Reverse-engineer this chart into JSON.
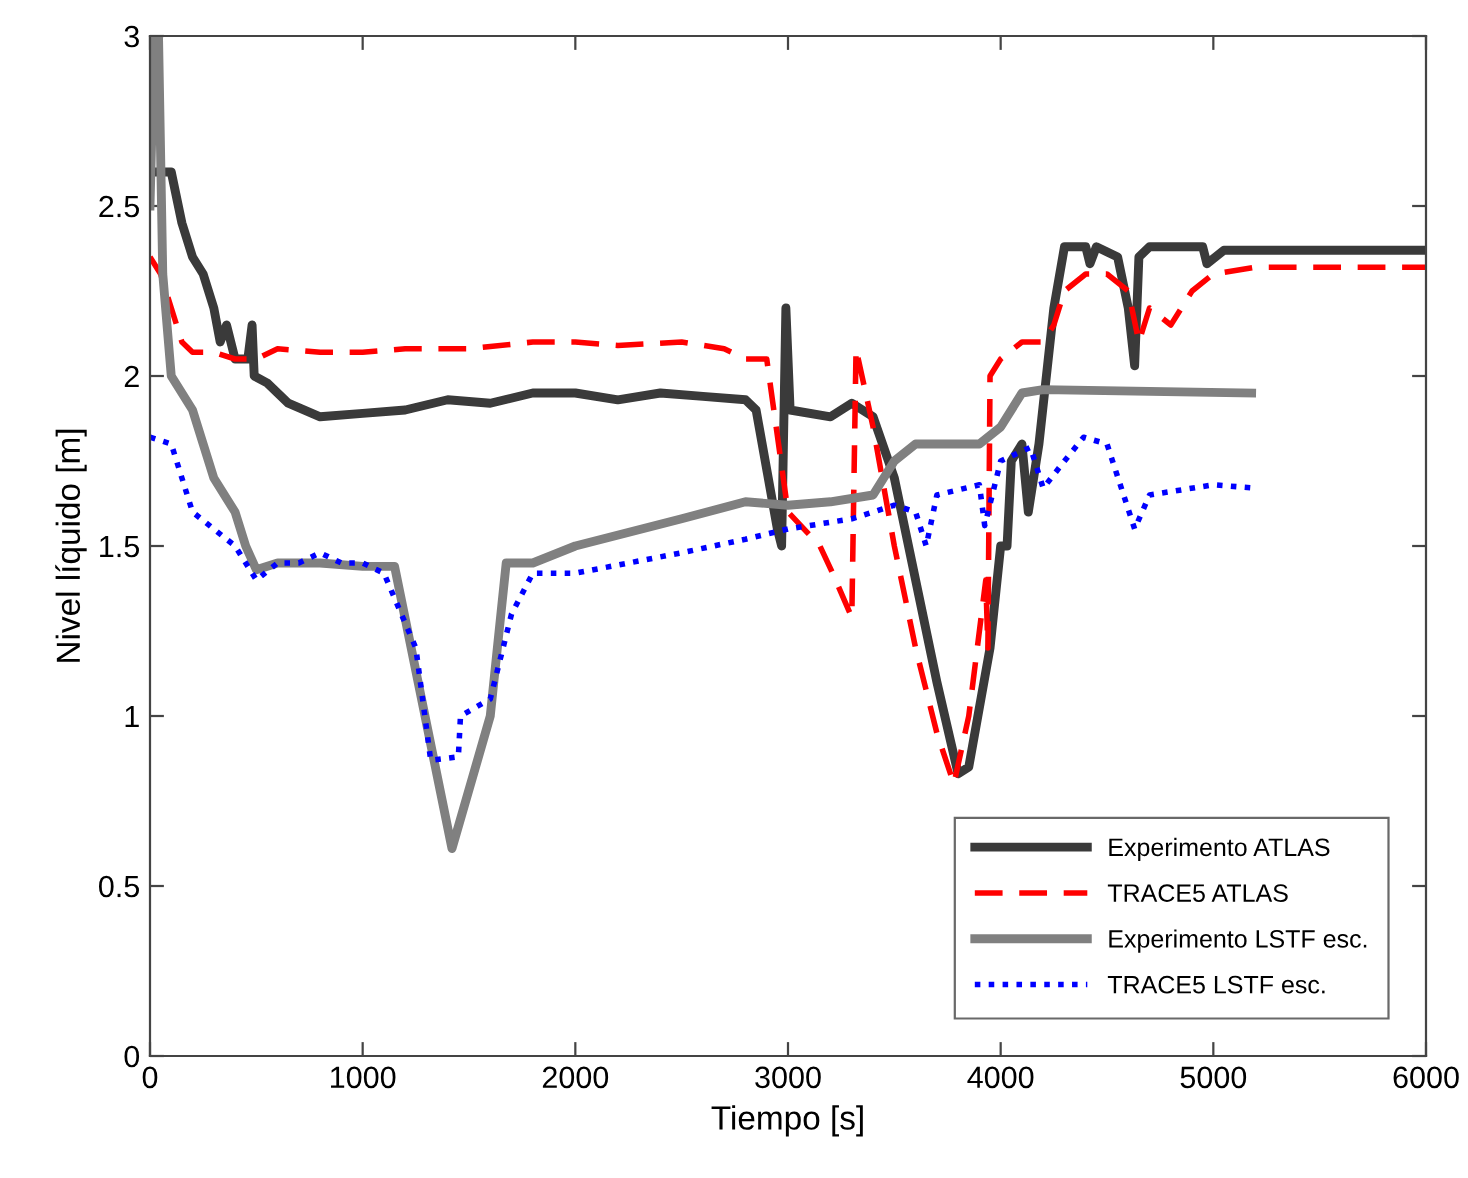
{
  "chart_data": {
    "type": "line",
    "xlabel": "Tiempo [s]",
    "ylabel": "Nivel líquido [m]",
    "xlim": [
      0,
      6000
    ],
    "ylim": [
      0,
      3
    ],
    "xticks": [
      0,
      1000,
      2000,
      3000,
      4000,
      5000,
      6000
    ],
    "yticks": [
      0,
      0.5,
      1,
      1.5,
      2,
      2.5,
      3
    ],
    "grid": false,
    "legend": "bottom right",
    "series": [
      {
        "name": "Experimento ATLAS",
        "color": "#3a3a3a",
        "line_style": "solid",
        "x": [
          40,
          100,
          150,
          200,
          250,
          300,
          330,
          360,
          400,
          460,
          480,
          490,
          550,
          650,
          800,
          1000,
          1200,
          1400,
          1600,
          1800,
          2000,
          2200,
          2400,
          2600,
          2800,
          2850,
          2950,
          2970,
          2990,
          3010,
          3200,
          3300,
          3400,
          3500,
          3700,
          3800,
          3850,
          3950,
          4000,
          4030,
          4050,
          4100,
          4130,
          4180,
          4250,
          4300,
          4400,
          4420,
          4450,
          4550,
          4600,
          4630,
          4650,
          4700,
          4950,
          4970,
          5050,
          6000
        ],
        "values": [
          2.6,
          2.6,
          2.45,
          2.35,
          2.3,
          2.2,
          2.1,
          2.15,
          2.05,
          2.05,
          2.15,
          2.0,
          1.98,
          1.92,
          1.88,
          1.89,
          1.9,
          1.93,
          1.92,
          1.95,
          1.95,
          1.93,
          1.95,
          1.94,
          1.93,
          1.9,
          1.55,
          1.5,
          2.2,
          1.9,
          1.88,
          1.92,
          1.88,
          1.7,
          1.1,
          0.83,
          0.85,
          1.2,
          1.5,
          1.5,
          1.75,
          1.8,
          1.6,
          1.8,
          2.2,
          2.38,
          2.38,
          2.33,
          2.38,
          2.35,
          2.2,
          2.03,
          2.35,
          2.38,
          2.38,
          2.33,
          2.37,
          2.37
        ]
      },
      {
        "name": "TRACE5 ATLAS",
        "color": "#ff0000",
        "line_style": "dashed",
        "x": [
          0,
          50,
          100,
          150,
          200,
          300,
          400,
          500,
          600,
          800,
          1000,
          1200,
          1500,
          1800,
          2000,
          2200,
          2500,
          2700,
          2800,
          2900,
          3000,
          3090,
          3150,
          3210,
          3300,
          3320,
          3400,
          3500,
          3600,
          3700,
          3780,
          3850,
          3930,
          3940,
          3950,
          4000,
          4100,
          4200,
          4250,
          4300,
          4400,
          4500,
          4600,
          4650,
          4700,
          4800,
          4900,
          5000,
          5200,
          6000
        ],
        "values": [
          2.35,
          2.3,
          2.2,
          2.1,
          2.07,
          2.07,
          2.05,
          2.05,
          2.08,
          2.07,
          2.07,
          2.08,
          2.08,
          2.1,
          2.1,
          2.09,
          2.1,
          2.08,
          2.05,
          2.05,
          1.6,
          1.54,
          1.5,
          1.42,
          1.29,
          2.08,
          1.85,
          1.5,
          1.2,
          0.95,
          0.8,
          1.0,
          1.4,
          1.2,
          2.0,
          2.05,
          2.1,
          2.1,
          2.15,
          2.25,
          2.3,
          2.3,
          2.25,
          2.1,
          2.2,
          2.15,
          2.25,
          2.3,
          2.32,
          2.32
        ]
      },
      {
        "name": "Experimento LSTF esc.",
        "color": "#808080",
        "line_style": "solid",
        "x": [
          0,
          20,
          40,
          60,
          100,
          200,
          300,
          400,
          450,
          500,
          600,
          800,
          1000,
          1150,
          1420,
          1600,
          1675,
          1800,
          2000,
          2500,
          2800,
          3000,
          3200,
          3400,
          3500,
          3600,
          3800,
          3900,
          4000,
          4100,
          4200,
          5180
        ],
        "values": [
          2.5,
          3.0,
          3.0,
          2.3,
          2.0,
          1.9,
          1.7,
          1.6,
          1.5,
          1.43,
          1.45,
          1.45,
          1.44,
          1.44,
          0.61,
          1.0,
          1.45,
          1.45,
          1.5,
          1.58,
          1.63,
          1.62,
          1.63,
          1.65,
          1.75,
          1.8,
          1.8,
          1.8,
          1.85,
          1.95,
          1.96,
          1.95
        ]
      },
      {
        "name": "TRACE5 LSTF esc.",
        "color": "#0000ff",
        "line_style": "dotted",
        "x": [
          0,
          100,
          150,
          200,
          300,
          400,
          500,
          600,
          700,
          800,
          900,
          1000,
          1100,
          1250,
          1320,
          1450,
          1460,
          1600,
          1700,
          1800,
          2000,
          2500,
          2800,
          3000,
          3300,
          3500,
          3600,
          3650,
          3700,
          3900,
          3925,
          4000,
          4140,
          4200,
          4300,
          4390,
          4500,
          4630,
          4700,
          5000,
          5200
        ],
        "values": [
          1.82,
          1.8,
          1.7,
          1.6,
          1.55,
          1.5,
          1.4,
          1.45,
          1.45,
          1.48,
          1.45,
          1.45,
          1.42,
          1.2,
          0.87,
          0.88,
          1.0,
          1.05,
          1.3,
          1.42,
          1.42,
          1.48,
          1.52,
          1.55,
          1.58,
          1.62,
          1.6,
          1.5,
          1.65,
          1.68,
          1.56,
          1.75,
          1.79,
          1.67,
          1.75,
          1.82,
          1.8,
          1.55,
          1.65,
          1.68,
          1.67
        ]
      }
    ]
  }
}
